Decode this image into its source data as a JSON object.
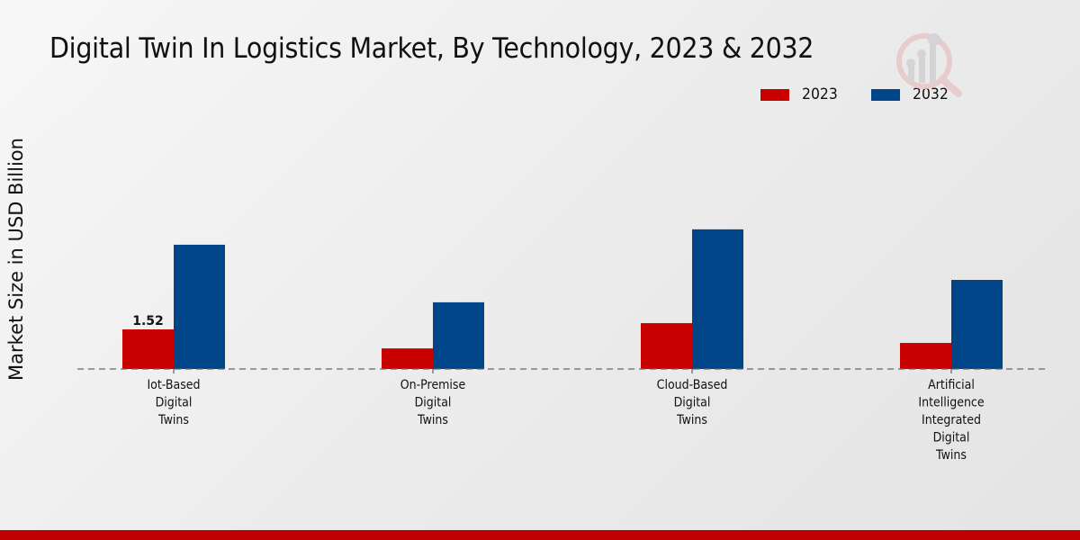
{
  "chart_data": {
    "type": "bar",
    "title": "Digital Twin In Logistics Market, By Technology, 2023 & 2032",
    "xlabel": "",
    "ylabel": "Market Size in USD Billion",
    "categories": [
      "Iot-Based Digital Twins",
      "On-Premise Digital Twins",
      "Cloud-Based Digital Twins",
      "Artificial Intelligence Integrated Digital Twins"
    ],
    "category_label_lines": [
      [
        "Iot-Based",
        "Digital",
        "Twins"
      ],
      [
        "On-Premise",
        "Digital",
        "Twins"
      ],
      [
        "Cloud-Based",
        "Digital",
        "Twins"
      ],
      [
        "Artificial",
        "Intelligence",
        "Integrated",
        "Digital",
        "Twins"
      ]
    ],
    "series": [
      {
        "name": "2023",
        "color": "#c90000",
        "values": [
          1.52,
          0.79,
          1.76,
          1.0
        ]
      },
      {
        "name": "2032",
        "color": "#004587",
        "values": [
          4.77,
          2.56,
          5.36,
          3.42
        ]
      }
    ],
    "data_labels": [
      {
        "series": "2023",
        "category_index": 0,
        "text": "1.52"
      }
    ],
    "ylim": [
      0,
      6.2
    ],
    "grid": false,
    "baseline": "dashed",
    "legend_position": "top-right"
  },
  "legend": [
    {
      "label": "2023",
      "color": "#c90000"
    },
    {
      "label": "2032",
      "color": "#004587"
    }
  ],
  "branding": {
    "logo_icon": "market-research-logo-icon",
    "footer_color": "#c00000"
  }
}
